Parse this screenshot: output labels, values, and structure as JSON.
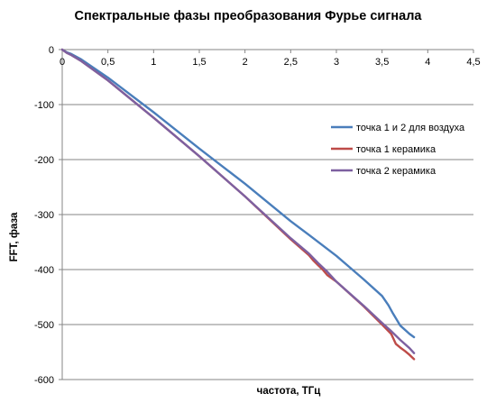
{
  "chart_data": {
    "type": "line",
    "title": "Спектральные фазы преобразования Фурье сигнала",
    "xlabel": "частота, ТГц",
    "ylabel": "FFT, фаза",
    "xlim": [
      0,
      4.5
    ],
    "ylim": [
      -600,
      0
    ],
    "x_ticks": [
      "0",
      "0,5",
      "1",
      "1,5",
      "2",
      "2,5",
      "3",
      "3,5",
      "4",
      "4,5"
    ],
    "y_ticks": [
      "0",
      "-100",
      "-200",
      "-300",
      "-400",
      "-500",
      "-600"
    ],
    "x_tick_values": [
      0,
      0.5,
      1,
      1.5,
      2,
      2.5,
      3,
      3.5,
      4,
      4.5
    ],
    "y_tick_values": [
      0,
      -100,
      -200,
      -300,
      -400,
      -500,
      -600
    ],
    "grid": "horizontal",
    "legend_position": "right",
    "series": [
      {
        "name": "точка 1 и 2 для воздуха",
        "color": "#4a7ebb",
        "x": [
          0,
          0.05,
          0.1,
          0.2,
          0.5,
          1.0,
          1.5,
          2.0,
          2.5,
          2.7,
          3.0,
          3.3,
          3.5,
          3.57,
          3.62,
          3.7,
          3.8,
          3.85
        ],
        "y": [
          0,
          -5,
          -8,
          -17,
          -51,
          -114,
          -180,
          -244,
          -312,
          -337,
          -375,
          -418,
          -448,
          -465,
          -480,
          -502,
          -517,
          -523
        ]
      },
      {
        "name": "точка 1 керамика",
        "color": "#be4b48",
        "x": [
          0,
          0.05,
          0.1,
          0.2,
          0.5,
          1.0,
          1.5,
          2.0,
          2.5,
          2.7,
          2.75,
          2.8,
          2.85,
          2.9,
          3.0,
          3.3,
          3.5,
          3.6,
          3.65,
          3.7,
          3.75,
          3.8,
          3.85
        ],
        "y": [
          0,
          -6,
          -10,
          -20,
          -56,
          -124,
          -194,
          -267,
          -345,
          -374,
          -384,
          -392,
          -400,
          -410,
          -422,
          -467,
          -500,
          -517,
          -535,
          -542,
          -548,
          -555,
          -563
        ]
      },
      {
        "name": "точка 2 керамика",
        "color": "#7d60a0",
        "x": [
          0,
          0.05,
          0.1,
          0.2,
          0.5,
          1.0,
          1.5,
          2.0,
          2.5,
          2.7,
          2.8,
          2.9,
          3.0,
          3.3,
          3.5,
          3.6,
          3.7,
          3.8,
          3.85
        ],
        "y": [
          0,
          -6,
          -10,
          -20,
          -56,
          -124,
          -194,
          -267,
          -343,
          -371,
          -388,
          -404,
          -422,
          -466,
          -497,
          -512,
          -528,
          -543,
          -552
        ]
      }
    ]
  }
}
